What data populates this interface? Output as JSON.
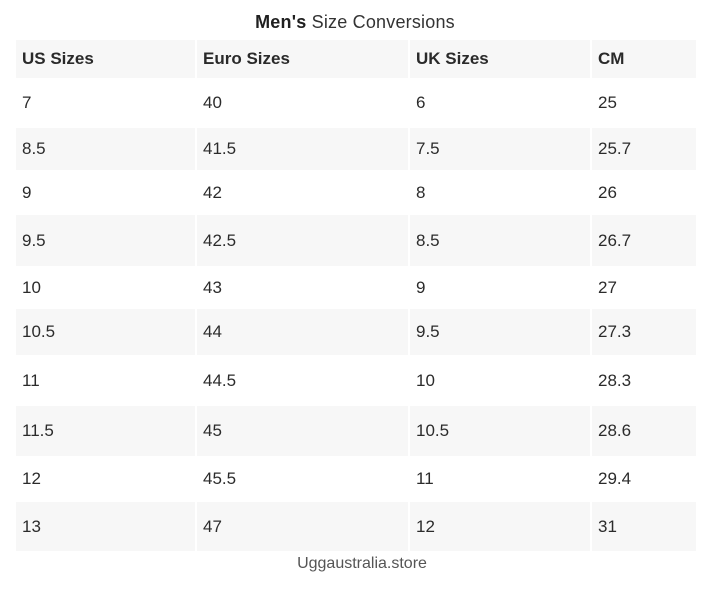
{
  "title": {
    "bold": "Men's",
    "rest": " Size Conversions"
  },
  "table": {
    "headers": [
      "US Sizes",
      "Euro Sizes",
      "UK Sizes",
      "CM"
    ],
    "rows": [
      [
        "7",
        "40",
        "6",
        "25"
      ],
      [
        "8.5",
        "41.5",
        "7.5",
        "25.7"
      ],
      [
        "9",
        "42",
        "8",
        "26"
      ],
      [
        "9.5",
        "42.5",
        "8.5",
        "26.7"
      ],
      [
        "10",
        "43",
        "9",
        "27"
      ],
      [
        "10.5",
        "44",
        "9.5",
        "27.3"
      ],
      [
        "11",
        "44.5",
        "10",
        "28.3"
      ],
      [
        "11.5",
        "45",
        "10.5",
        "28.6"
      ],
      [
        "12",
        "45.5",
        "11",
        "29.4"
      ],
      [
        "13",
        "47",
        "12",
        "31"
      ]
    ]
  },
  "footer": "Uggaustralia.store",
  "colors": {
    "stripe": "#f7f7f7",
    "text": "#2b2b2b"
  }
}
